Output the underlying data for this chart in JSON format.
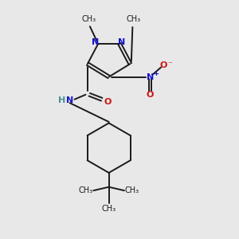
{
  "bg_color": "#e8e8e8",
  "bond_color": "#1a1a1a",
  "N_color": "#1414cc",
  "O_color": "#cc1414",
  "NH_color": "#4a9090",
  "lw": 1.4,
  "fig_width": 3.0,
  "fig_height": 3.0,
  "dpi": 100,
  "xlim": [
    0,
    10
  ],
  "ylim": [
    0,
    10
  ]
}
